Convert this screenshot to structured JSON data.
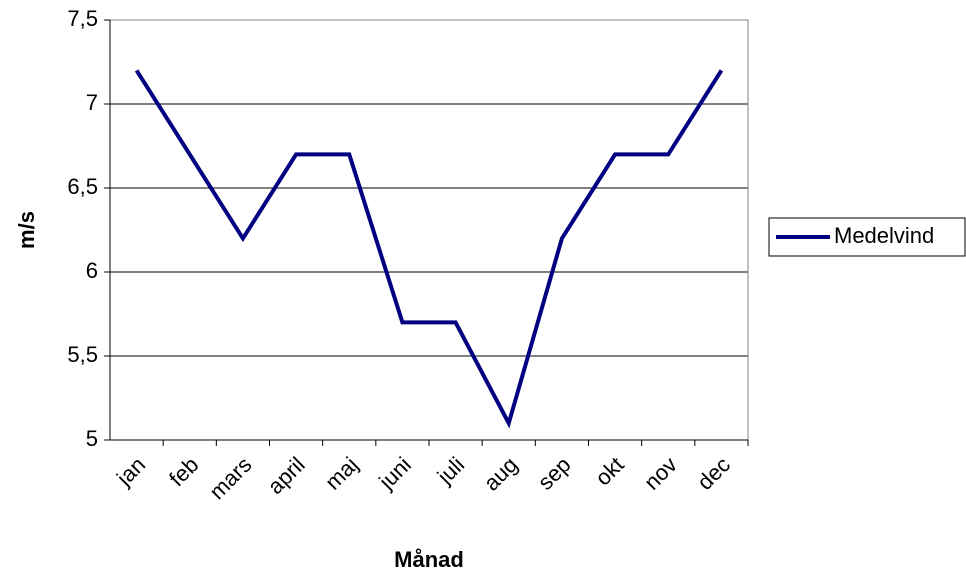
{
  "chart_data": {
    "type": "line",
    "x_label": "Månad",
    "y_label": "m/s",
    "categories": [
      "jan",
      "feb",
      "mars",
      "april",
      "maj",
      "juni",
      "juli",
      "aug",
      "sep",
      "okt",
      "nov",
      "dec"
    ],
    "series": [
      {
        "name": "Medelvind",
        "color": "#000080",
        "values": [
          7.2,
          6.7,
          6.2,
          6.7,
          6.7,
          5.7,
          5.7,
          5.1,
          6.2,
          6.7,
          6.7,
          7.2
        ]
      }
    ],
    "ylim": [
      5,
      7.5
    ],
    "yticks": [
      5,
      {
        "value": 5.5,
        "label": "5,5"
      },
      6,
      {
        "value": 6.5,
        "label": "6,5"
      },
      7,
      {
        "value": 7.5,
        "label": "7,5"
      }
    ],
    "grid": true,
    "legend": "right"
  }
}
